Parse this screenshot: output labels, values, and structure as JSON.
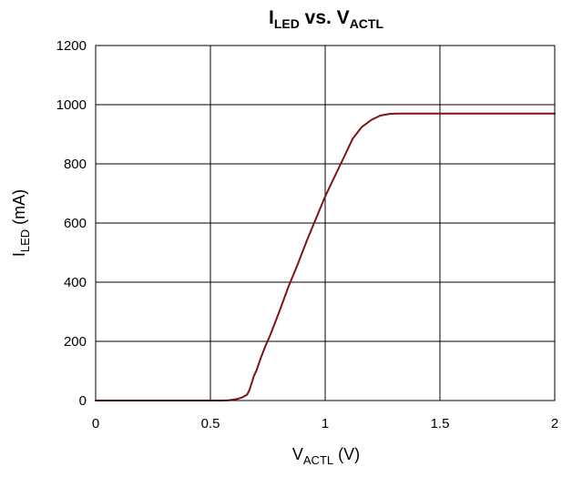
{
  "chart_data": {
    "type": "line",
    "title": {
      "main": "I",
      "main_sub": "LED",
      "mid": " vs. V",
      "mid_sub": "ACTL"
    },
    "xlabel": {
      "main": "V",
      "sub": "ACTL",
      "rest": " (V)"
    },
    "ylabel": {
      "main": "I",
      "sub": "LED",
      "rest": " (mA)"
    },
    "xlim": [
      0,
      2
    ],
    "ylim": [
      0,
      1200
    ],
    "x_ticks": [
      0,
      0.5,
      1,
      1.5,
      2
    ],
    "x_tick_labels": [
      "0",
      "0.5",
      "1",
      "1.5",
      "2"
    ],
    "y_ticks": [
      0,
      200,
      400,
      600,
      800,
      1000,
      1200
    ],
    "y_tick_labels": [
      "0",
      "200",
      "400",
      "600",
      "800",
      "1000",
      "1200"
    ],
    "grid": true,
    "legend": "none",
    "series_color": "#7f1416",
    "series": [
      {
        "x": [
          0,
          0.1,
          0.2,
          0.3,
          0.4,
          0.5,
          0.55,
          0.58,
          0.6,
          0.62,
          0.64,
          0.66,
          0.67,
          0.68,
          0.69,
          0.7,
          0.72,
          0.74,
          0.76,
          0.8,
          0.84,
          0.88,
          0.92,
          0.96,
          1.0,
          1.04,
          1.08,
          1.12,
          1.16,
          1.2,
          1.24,
          1.28,
          1.31,
          1.33,
          1.36,
          1.4,
          1.5,
          1.6,
          1.7,
          1.8,
          1.9,
          2.0
        ],
        "y": [
          0,
          0,
          0,
          0,
          0,
          0,
          0,
          1,
          3,
          6,
          11,
          20,
          35,
          60,
          85,
          100,
          145,
          185,
          220,
          300,
          385,
          460,
          540,
          615,
          690,
          755,
          820,
          885,
          925,
          948,
          963,
          969,
          970,
          970,
          970,
          970,
          970,
          970,
          970,
          970,
          970,
          970
        ]
      }
    ]
  }
}
